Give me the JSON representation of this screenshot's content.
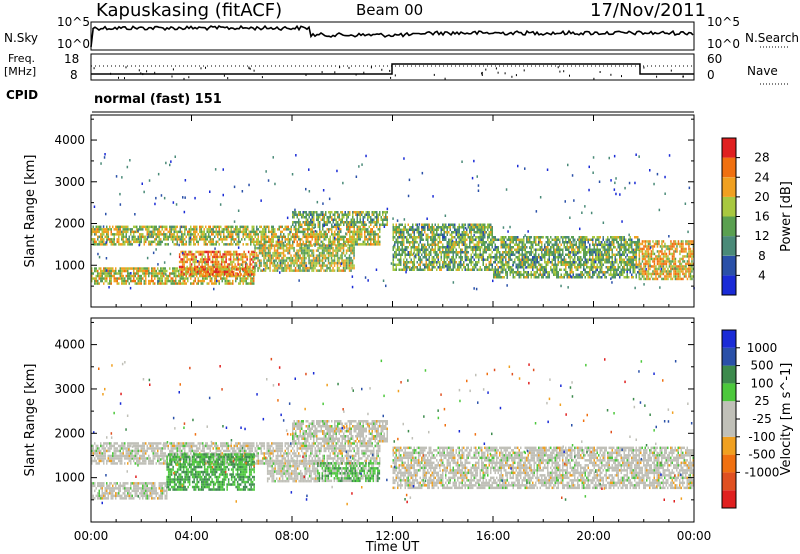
{
  "header": {
    "station": "Kapuskasing (fitACF)",
    "beam": "Beam 00",
    "date": "17/Nov/2011"
  },
  "top_panels": {
    "nsky_label": "N.Sky",
    "nsearch_label": "N.Search",
    "freq_label_line1": "Freq.",
    "freq_label_line2": "[MHz]",
    "nave_label": "Nave",
    "cpid_label": "CPID",
    "cpid_value": "normal (fast) 151",
    "noise_ticks_left": [
      "10^5",
      "10^0"
    ],
    "noise_ticks_right": [
      "10^5",
      "10^0"
    ],
    "freq_ticks": [
      "18",
      "8"
    ],
    "nave_ticks": [
      "60",
      "0"
    ]
  },
  "colors": {
    "power": [
      "#1a2bd6",
      "#2a50a8",
      "#4a8a78",
      "#5aa050",
      "#a8c840",
      "#f0a020",
      "#f07010",
      "#e02020"
    ],
    "velocity": [
      "#1a2bd6",
      "#2a50a8",
      "#3c8a4c",
      "#4cc83c",
      "#c0c0b8",
      "#c0c0b8",
      "#f0a020",
      "#f07010",
      "#e05020",
      "#e02020"
    ]
  },
  "chart_data": [
    {
      "type": "heatmap",
      "name_hint": "power",
      "xlabel": "",
      "ylabel": "Slant Range [km]",
      "xlim": [
        0,
        24
      ],
      "ylim": [
        0,
        4600
      ],
      "y_ticks": [
        "1000",
        "2000",
        "3000",
        "4000"
      ],
      "x_ticks": [
        "00:00",
        "04:00",
        "08:00",
        "12:00",
        "16:00",
        "20:00",
        "00:00"
      ],
      "colorbar": {
        "label": "Power [dB]",
        "ticks": [
          "28",
          "24",
          "20",
          "16",
          "12",
          "8",
          "4"
        ]
      },
      "bands": [
        {
          "t0": 0.0,
          "t1": 11.5,
          "r0": 1500,
          "r1": 1950,
          "level": 0.55
        },
        {
          "t0": 8.0,
          "t1": 11.8,
          "r0": 1950,
          "r1": 2300,
          "level": 0.45
        },
        {
          "t0": 0.0,
          "t1": 6.5,
          "r0": 550,
          "r1": 950,
          "level": 0.6
        },
        {
          "t0": 3.5,
          "t1": 6.5,
          "r0": 800,
          "r1": 1350,
          "level": 0.75
        },
        {
          "t0": 6.5,
          "t1": 10.5,
          "r0": 900,
          "r1": 1500,
          "level": 0.55
        },
        {
          "t0": 12.0,
          "t1": 16.0,
          "r0": 900,
          "r1": 2000,
          "level": 0.45
        },
        {
          "t0": 16.0,
          "t1": 21.8,
          "r0": 700,
          "r1": 1700,
          "level": 0.45
        },
        {
          "t0": 21.8,
          "t1": 24.0,
          "r0": 700,
          "r1": 1600,
          "level": 0.65
        }
      ]
    },
    {
      "type": "heatmap",
      "name_hint": "velocity",
      "xlabel": "Time UT",
      "ylabel": "Slant Range [km]",
      "xlim": [
        0,
        24
      ],
      "ylim": [
        0,
        4600
      ],
      "y_ticks": [
        "1000",
        "2000",
        "3000",
        "4000"
      ],
      "x_ticks": [
        "00:00",
        "04:00",
        "08:00",
        "12:00",
        "16:00",
        "20:00",
        "00:00"
      ],
      "colorbar": {
        "label": "Velocity [m s^-1]",
        "ticks": [
          "1000",
          "500",
          "100",
          "25",
          "-25",
          "-100",
          "-500",
          "-1000"
        ]
      },
      "bands": [
        {
          "t0": 0.0,
          "t1": 11.5,
          "r0": 1300,
          "r1": 1800,
          "level": 0.45
        },
        {
          "t0": 8.0,
          "t1": 11.8,
          "r0": 1800,
          "r1": 2300,
          "level": 0.45
        },
        {
          "t0": 0.0,
          "t1": 3.0,
          "r0": 550,
          "r1": 900,
          "level": 0.45
        },
        {
          "t0": 3.0,
          "t1": 6.5,
          "r0": 750,
          "r1": 1550,
          "level": 0.7
        },
        {
          "t0": 7.0,
          "t1": 9.0,
          "r0": 900,
          "r1": 1400,
          "level": 0.3
        },
        {
          "t0": 9.0,
          "t1": 11.5,
          "r0": 950,
          "r1": 1350,
          "level": 0.65
        },
        {
          "t0": 12.0,
          "t1": 24.0,
          "r0": 750,
          "r1": 1700,
          "level": 0.45
        }
      ]
    }
  ]
}
